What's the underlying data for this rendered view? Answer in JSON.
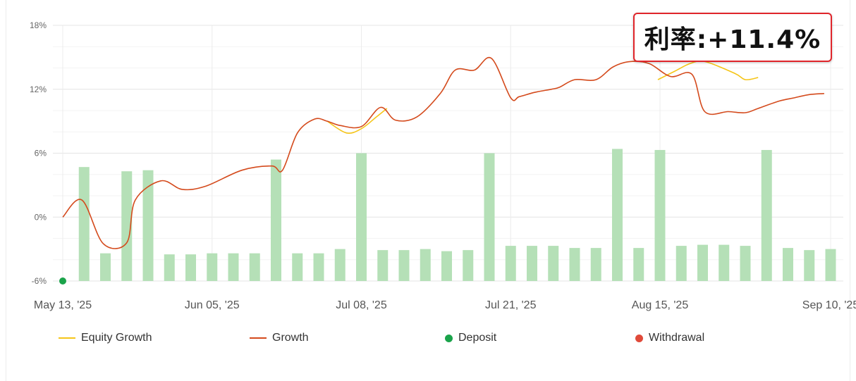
{
  "annotation": {
    "text": "利率:+11.4%",
    "border_color": "#e0252b"
  },
  "legend": [
    {
      "label": "Equity Growth",
      "kind": "line",
      "color": "#f5c518"
    },
    {
      "label": "Growth",
      "kind": "line",
      "color": "#d44a1c"
    },
    {
      "label": "Deposit",
      "kind": "dot",
      "color": "#1aa34a"
    },
    {
      "label": "Withdrawal",
      "kind": "dot",
      "color": "#e04a3a"
    }
  ],
  "chart_data": {
    "type": "bar",
    "title": "",
    "xlabel": "",
    "ylabel": "",
    "ylim": [
      -6,
      18
    ],
    "y_ticks": [
      "18%",
      "12%",
      "6%",
      "0%",
      "-6%"
    ],
    "y_tick_values": [
      18,
      12,
      6,
      0,
      -6
    ],
    "x_tick_labels": [
      "May 13, '25",
      "Jun 05, '25",
      "Jul 08, '25",
      "Jul 21, '25",
      "Aug 15, '25",
      "Sep 10, '25"
    ],
    "x_tick_index": [
      0,
      7,
      14,
      21,
      28,
      36
    ],
    "grid": true,
    "legend_position": "bottom",
    "bar_color": "#b5e0b7",
    "bar_values": [
      10.7,
      2.6,
      10.3,
      10.4,
      2.5,
      2.5,
      2.6,
      2.6,
      2.6,
      11.4,
      2.6,
      2.6,
      3.0,
      12.0,
      2.9,
      2.9,
      3.0,
      2.8,
      2.9,
      12.0,
      3.3,
      3.3,
      3.3,
      3.1,
      3.1,
      12.4,
      3.1,
      12.3,
      3.3,
      3.4,
      3.4,
      3.3,
      12.3,
      3.1,
      2.9,
      3.0
    ],
    "series": [
      {
        "name": "Growth",
        "color": "#d44a1c",
        "x": [
          0,
          0.9,
          1.9,
          3.0,
          3.4,
          4.6,
          5.6,
          6.7,
          8.4,
          9.8,
          10.3,
          11.0,
          11.8,
          12.4,
          13.0,
          14.0,
          14.9,
          15.6,
          16.6,
          17.7,
          18.4,
          19.3,
          20.1,
          21.0,
          21.4,
          22.1,
          22.9,
          23.3,
          24.0,
          25.0,
          25.8,
          26.6,
          27.5,
          28.5,
          29.5,
          30.1,
          31.2,
          32.0,
          32.6,
          33.6,
          34.3,
          35.0,
          35.7
        ],
        "values": [
          0.0,
          1.6,
          -2.5,
          -2.4,
          1.6,
          3.4,
          2.6,
          2.9,
          4.4,
          4.8,
          4.4,
          7.9,
          9.2,
          9.0,
          8.6,
          8.5,
          10.3,
          9.1,
          9.4,
          11.6,
          13.8,
          13.8,
          14.9,
          11.2,
          11.3,
          11.7,
          12.0,
          12.2,
          12.9,
          12.9,
          14.1,
          14.6,
          14.4,
          13.2,
          13.4,
          9.9,
          9.9,
          9.8,
          10.2,
          10.9,
          11.2,
          11.5,
          11.6
        ]
      },
      {
        "name": "Equity Growth",
        "color": "#f5c518",
        "x": [
          12.4,
          13.3,
          14.0,
          14.7,
          15.2,
          27.9,
          28.7,
          29.4,
          30.1,
          31.5,
          32.0,
          32.6
        ],
        "values": [
          9.0,
          7.9,
          8.3,
          9.4,
          10.2,
          12.9,
          13.7,
          14.4,
          14.6,
          13.5,
          12.9,
          13.1
        ]
      },
      {
        "name": "Deposit",
        "color": "#1aa34a",
        "x": [
          0
        ],
        "values": [
          -6
        ]
      }
    ]
  }
}
